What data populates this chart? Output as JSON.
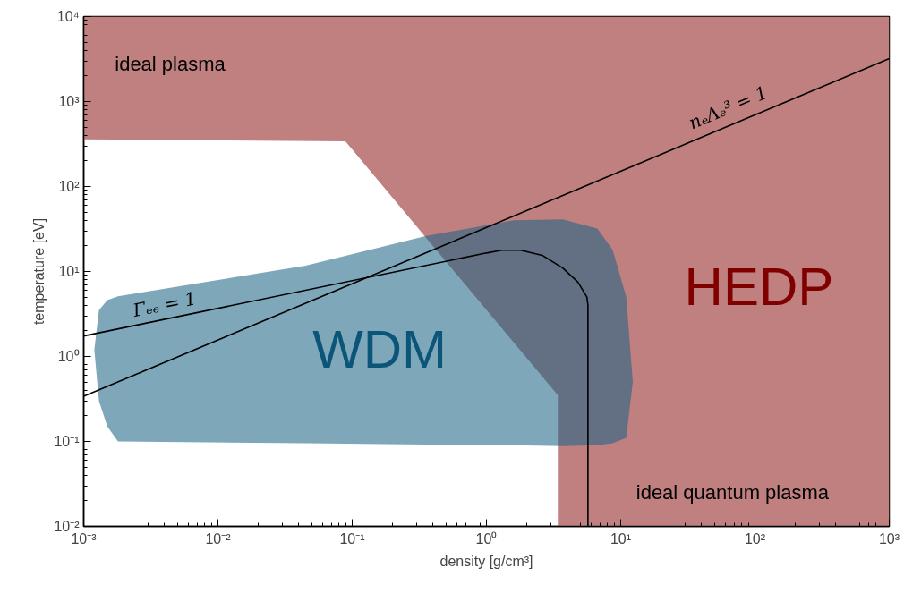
{
  "chart_data": {
    "type": "area",
    "xlabel": "density [g/cm³]",
    "ylabel": "temperature [eV]",
    "log": "xy",
    "grid": false,
    "xlim": [
      0.001,
      1000
    ],
    "ylim": [
      0.01,
      10000
    ],
    "xticks": [
      {
        "value": 0.001,
        "label": "10⁻³"
      },
      {
        "value": 0.01,
        "label": "10⁻²"
      },
      {
        "value": 0.1,
        "label": "10⁻¹"
      },
      {
        "value": 1,
        "label": "10⁰"
      },
      {
        "value": 10,
        "label": "10¹"
      },
      {
        "value": 100,
        "label": "10²"
      },
      {
        "value": 1000,
        "label": "10³"
      }
    ],
    "yticks": [
      {
        "value": 0.01,
        "label": "10⁻²"
      },
      {
        "value": 0.1,
        "label": "10⁻¹"
      },
      {
        "value": 1,
        "label": "10⁰"
      },
      {
        "value": 10,
        "label": "10¹"
      },
      {
        "value": 100,
        "label": "10²"
      },
      {
        "value": 1000,
        "label": "10³"
      },
      {
        "value": 10000,
        "label": "10⁴"
      }
    ],
    "series": [
      {
        "name": "HEDP",
        "color": "#c08080",
        "x": [
          0.001,
          1000,
          1000,
          3.4,
          3.4,
          0.089,
          0.001
        ],
        "values": [
          10000,
          10000,
          0.01,
          0.01,
          0.35,
          340,
          360
        ]
      },
      {
        "name": "WDM",
        "color": "#1a6284",
        "x": [
          0.0012,
          0.0013,
          0.0015,
          0.0018,
          0.045,
          0.35,
          1.6,
          3.7,
          6.7,
          8.7,
          11,
          12.3,
          11,
          8.7,
          6.7,
          3.7,
          1.6,
          0.35,
          0.045,
          0.0018,
          0.0015,
          0.0013
        ],
        "values": [
          1.2,
          3.5,
          4.6,
          5.1,
          11.7,
          26,
          40,
          41,
          32,
          18,
          5,
          0.5,
          0.11,
          0.095,
          0.09,
          0.088,
          0.09,
          0.092,
          0.095,
          0.1,
          0.15,
          0.3
        ]
      },
      {
        "type": "line",
        "name": "nₑΛₑ³ = 1",
        "color": "#000000",
        "x": [
          0.001,
          1000
        ],
        "values": [
          0.34,
          3200
        ]
      },
      {
        "type": "line",
        "name": "Γₑₑ = 1",
        "color": "#000000",
        "x": [
          0.001,
          1.0,
          1.3,
          1.8,
          2.6,
          3.7,
          4.8,
          5.6,
          5.7,
          5.7
        ],
        "values": [
          1.74,
          16.5,
          17.8,
          17.8,
          15.5,
          11,
          7.5,
          5,
          4,
          0.01
        ]
      }
    ],
    "annotations": [
      "ideal plasma",
      "ideal quantum plasma"
    ]
  }
}
